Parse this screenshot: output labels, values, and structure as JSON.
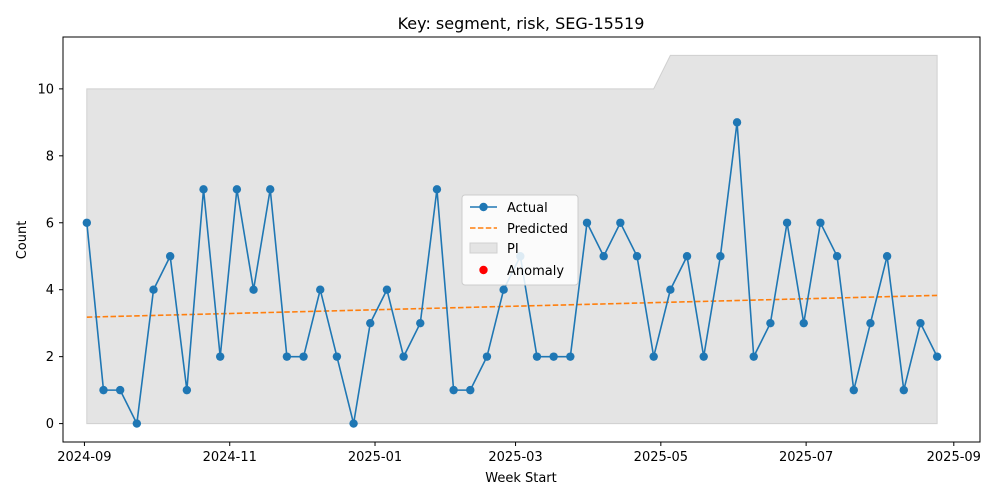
{
  "chart_data": {
    "type": "line",
    "title": "Key: segment, risk, SEG-15519",
    "xlabel": "Week Start",
    "ylabel": "Count",
    "ylim": [
      -0.55,
      11.55
    ],
    "xlim": [
      "2024-08-23",
      "2025-09-12"
    ],
    "x_ticks": [
      {
        "date": "2024-09-01",
        "label": "2024-09"
      },
      {
        "date": "2024-11-01",
        "label": "2024-11"
      },
      {
        "date": "2025-01-01",
        "label": "2025-01"
      },
      {
        "date": "2025-03-01",
        "label": "2025-03"
      },
      {
        "date": "2025-05-01",
        "label": "2025-05"
      },
      {
        "date": "2025-07-01",
        "label": "2025-07"
      },
      {
        "date": "2025-09-01",
        "label": "2025-09"
      }
    ],
    "y_ticks": [
      0,
      2,
      4,
      6,
      8,
      10
    ],
    "grid": false,
    "legend": {
      "placement": "center",
      "entries": [
        "Actual",
        "Predicted",
        "PI",
        "Anomaly"
      ]
    },
    "colors": {
      "actual": "#1f77b4",
      "predicted": "#ff7f0e",
      "pi_fill": "#e4e4e4",
      "pi_edge": "#d0d0d0",
      "anomaly": "#ff0000"
    },
    "series": [
      {
        "name": "Actual",
        "x": [
          "2024-09-02",
          "2024-09-09",
          "2024-09-16",
          "2024-09-23",
          "2024-09-30",
          "2024-10-07",
          "2024-10-14",
          "2024-10-21",
          "2024-10-28",
          "2024-11-04",
          "2024-11-11",
          "2024-11-18",
          "2024-11-25",
          "2024-12-02",
          "2024-12-09",
          "2024-12-16",
          "2024-12-23",
          "2024-12-30",
          "2025-01-06",
          "2025-01-13",
          "2025-01-20",
          "2025-01-27",
          "2025-02-03",
          "2025-02-10",
          "2025-02-17",
          "2025-02-24",
          "2025-03-03",
          "2025-03-10",
          "2025-03-17",
          "2025-03-24",
          "2025-03-31",
          "2025-04-07",
          "2025-04-14",
          "2025-04-21",
          "2025-04-28",
          "2025-05-05",
          "2025-05-12",
          "2025-05-19",
          "2025-05-26",
          "2025-06-02",
          "2025-06-09",
          "2025-06-16",
          "2025-06-23",
          "2025-06-30",
          "2025-07-07",
          "2025-07-14",
          "2025-07-21",
          "2025-07-28",
          "2025-08-04",
          "2025-08-11",
          "2025-08-18",
          "2025-08-25"
        ],
        "values": [
          6,
          1,
          1,
          0,
          4,
          5,
          1,
          7,
          2,
          7,
          4,
          7,
          2,
          2,
          4,
          2,
          0,
          3,
          4,
          2,
          3,
          7,
          1,
          1,
          2,
          4,
          5,
          2,
          2,
          2,
          6,
          5,
          6,
          5,
          2,
          4,
          5,
          2,
          5,
          9,
          2,
          3,
          6,
          3,
          6,
          5,
          1,
          3,
          5,
          1,
          3,
          2
        ]
      },
      {
        "name": "Predicted",
        "x": [
          "2024-09-02",
          "2025-08-25"
        ],
        "values": [
          3.18,
          3.83
        ]
      }
    ],
    "pi_band": {
      "name": "PI",
      "x": [
        "2024-09-02",
        "2025-04-28",
        "2025-05-05",
        "2025-08-25"
      ],
      "lower": [
        0,
        0,
        0,
        0
      ],
      "upper": [
        10,
        10,
        11,
        11
      ]
    },
    "anomalies": []
  }
}
